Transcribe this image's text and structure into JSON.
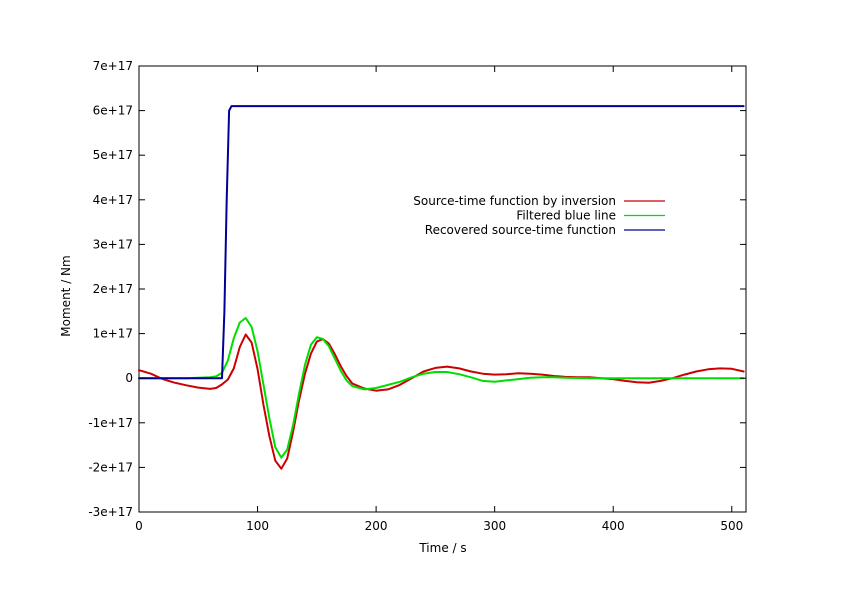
{
  "chart_data": {
    "type": "line",
    "title": "",
    "xlabel": "Time / s",
    "ylabel": "Moment / Nm",
    "xlim": [
      0,
      512
    ],
    "ylim": [
      -3e+17,
      7e+17
    ],
    "grid": false,
    "legend_position": "right",
    "x_ticks": [
      0,
      100,
      200,
      300,
      400,
      500
    ],
    "x_tick_labels": [
      "0",
      "100",
      "200",
      "300",
      "400",
      "500"
    ],
    "y_ticks": [
      -3e+17,
      -2e+17,
      -1e+17,
      0,
      1e+17,
      2e+17,
      3e+17,
      4e+17,
      5e+17,
      6e+17,
      7e+17
    ],
    "y_tick_labels": [
      "-3e+17",
      "-2e+17",
      "-1e+17",
      "0",
      "1e+17",
      "2e+17",
      "3e+17",
      "4e+17",
      "5e+17",
      "6e+17",
      "7e+17"
    ],
    "series": [
      {
        "name": "Source-time function by inversion",
        "color": "#cc0000",
        "x": [
          0,
          10,
          20,
          30,
          40,
          50,
          60,
          65,
          70,
          75,
          80,
          85,
          90,
          95,
          100,
          105,
          110,
          115,
          120,
          125,
          130,
          135,
          140,
          145,
          150,
          155,
          160,
          165,
          170,
          175,
          180,
          190,
          200,
          210,
          220,
          230,
          240,
          250,
          260,
          270,
          280,
          290,
          300,
          310,
          320,
          330,
          340,
          350,
          360,
          370,
          380,
          390,
          400,
          410,
          420,
          430,
          440,
          450,
          460,
          470,
          480,
          490,
          500,
          510
        ],
        "y": [
          1.8e+16,
          1e+16,
          -2000000000000000.0,
          -1e+16,
          -1.6e+16,
          -2.1e+16,
          -2.4e+16,
          -2.2e+16,
          -1.4e+16,
          -3000000000000000.0,
          2.2e+16,
          7e+16,
          9.8e+16,
          8e+16,
          2e+16,
          -6e+16,
          -1.3e+17,
          -1.85e+17,
          -2.03e+17,
          -1.8e+17,
          -1.2e+17,
          -5e+16,
          1e+16,
          5.5e+16,
          8.2e+16,
          8.8e+16,
          7.8e+16,
          5.5e+16,
          2.8e+16,
          5000000000000000.0,
          -1.2e+16,
          -2.3e+16,
          -2.8e+16,
          -2.5e+16,
          -1.5e+16,
          0,
          1.5e+16,
          2.3e+16,
          2.6e+16,
          2.2e+16,
          1.5e+16,
          1e+16,
          8000000000000000.0,
          9000000000000000.0,
          1.1e+16,
          1e+16,
          8000000000000000.0,
          5000000000000000.0,
          3000000000000000.0,
          2000000000000000.0,
          2000000000000000.0,
          0,
          -2000000000000000.0,
          -6000000000000000.0,
          -9000000000000000.0,
          -1e+16,
          -6000000000000000.0,
          0,
          8000000000000000.0,
          1.5e+16,
          2e+16,
          2.2e+16,
          2.1e+16,
          1.5e+16
        ]
      },
      {
        "name": "Filtered blue line",
        "color": "#00dd00",
        "x": [
          0,
          20,
          40,
          60,
          65,
          70,
          75,
          80,
          85,
          90,
          95,
          100,
          105,
          110,
          115,
          120,
          125,
          130,
          135,
          140,
          145,
          150,
          155,
          160,
          165,
          170,
          175,
          180,
          190,
          200,
          210,
          220,
          230,
          240,
          250,
          260,
          270,
          280,
          290,
          300,
          310,
          320,
          330,
          340,
          350,
          360,
          380,
          400,
          420,
          440,
          460,
          480,
          500,
          510
        ],
        "y": [
          0,
          0,
          0,
          2000000000000000.0,
          4000000000000000.0,
          1.2e+16,
          4e+16,
          9e+16,
          1.25e+17,
          1.35e+17,
          1.15e+17,
          6e+16,
          -1.5e+16,
          -9e+16,
          -1.55e+17,
          -1.78e+17,
          -1.6e+17,
          -1.05e+17,
          -3.5e+16,
          3e+16,
          7.5e+16,
          9.2e+16,
          8.8e+16,
          7.2e+16,
          4.5e+16,
          1.8e+16,
          -5000000000000000.0,
          -1.8e+16,
          -2.5e+16,
          -2.2e+16,
          -1.5e+16,
          -8000000000000000.0,
          2000000000000000.0,
          1e+16,
          1.4e+16,
          1.4e+16,
          9000000000000000.0,
          2000000000000000.0,
          -6000000000000000.0,
          -8000000000000000.0,
          -5000000000000000.0,
          -2000000000000000.0,
          1000000000000000.0,
          2000000000000000.0,
          2000000000000000.0,
          1000000000000000.0,
          0,
          0,
          0,
          0,
          0,
          0,
          0,
          0
        ]
      },
      {
        "name": "Recovered source-time function",
        "color": "#000099",
        "x": [
          0,
          70,
          72,
          74,
          76,
          78,
          510
        ],
        "y": [
          0,
          0,
          1.5e+17,
          4e+17,
          6e+17,
          6.1e+17,
          6.1e+17
        ]
      }
    ]
  }
}
